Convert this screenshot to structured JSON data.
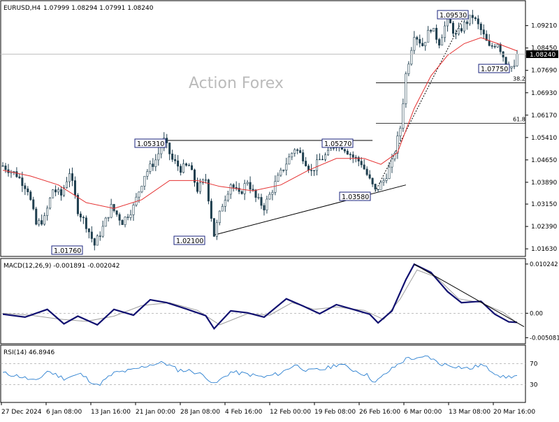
{
  "chart_data": {
    "type": "candlestick",
    "symbol_label": "EURUSD,H4",
    "ohlc_header": "1.07999 1.08294 1.07991 1.08240",
    "last_price_label": "1.08240",
    "watermark": "Action Forex",
    "price_axis": {
      "ylim": [
        1.0142,
        1.0989
      ],
      "ticks": [
        "1.09210",
        "1.08450",
        "1.07690",
        "1.06930",
        "1.06170",
        "1.05410",
        "1.04650",
        "1.03890",
        "1.03150",
        "1.02390",
        "1.01630"
      ]
    },
    "time_labels": [
      "27 Dec 2024",
      "6 Jan 08:00",
      "13 Jan 16:00",
      "21 Jan 00:00",
      "28 Jan 08:00",
      "4 Feb 16:00",
      "12 Feb 00:00",
      "19 Feb 08:00",
      "26 Feb 16:00",
      "6 Mar 00:00",
      "13 Mar 08:00",
      "20 Mar 16:00"
    ],
    "price_path": [
      [
        0,
        1.0445
      ],
      [
        5,
        1.0415
      ],
      [
        9,
        1.0365
      ],
      [
        12,
        1.0245
      ],
      [
        15,
        1.0265
      ],
      [
        18,
        1.0365
      ],
      [
        21,
        1.0345
      ],
      [
        24,
        1.0425
      ],
      [
        27,
        1.0295
      ],
      [
        30,
        1.0245
      ],
      [
        33,
        1.0176
      ],
      [
        36,
        1.0235
      ],
      [
        39,
        1.0305
      ],
      [
        43,
        1.0255
      ],
      [
        47,
        1.0305
      ],
      [
        51,
        1.0415
      ],
      [
        55,
        1.0465
      ],
      [
        58,
        1.0531
      ],
      [
        61,
        1.0465
      ],
      [
        64,
        1.0435
      ],
      [
        67,
        1.0445
      ],
      [
        70,
        1.0365
      ],
      [
        73,
        1.04
      ],
      [
        76,
        1.021
      ],
      [
        79,
        1.0315
      ],
      [
        82,
        1.0385
      ],
      [
        85,
        1.0345
      ],
      [
        88,
        1.0395
      ],
      [
        91,
        1.0335
      ],
      [
        94,
        1.0305
      ],
      [
        98,
        1.0385
      ],
      [
        102,
        1.0455
      ],
      [
        105,
        1.0505
      ],
      [
        108,
        1.0475
      ],
      [
        111,
        1.0425
      ],
      [
        114,
        1.0465
      ],
      [
        117,
        1.0485
      ],
      [
        120,
        1.0527
      ],
      [
        123,
        1.0505
      ],
      [
        126,
        1.0475
      ],
      [
        129,
        1.0455
      ],
      [
        132,
        1.0395
      ],
      [
        134,
        1.0358
      ],
      [
        137,
        1.0395
      ],
      [
        140,
        1.0455
      ],
      [
        143,
        1.0575
      ],
      [
        145,
        1.0755
      ],
      [
        148,
        1.0895
      ],
      [
        151,
        1.0855
      ],
      [
        154,
        1.0915
      ],
      [
        157,
        1.0865
      ],
      [
        160,
        1.0945
      ],
      [
        163,
        1.0885
      ],
      [
        166,
        1.0925
      ],
      [
        169,
        1.0953
      ],
      [
        172,
        1.0905
      ],
      [
        175,
        1.0845
      ],
      [
        178,
        1.0865
      ],
      [
        181,
        1.0795
      ],
      [
        184,
        1.0775
      ],
      [
        185,
        1.0824
      ]
    ],
    "ma_path": [
      [
        0,
        1.043
      ],
      [
        10,
        1.041
      ],
      [
        20,
        1.038
      ],
      [
        30,
        1.032
      ],
      [
        40,
        1.03
      ],
      [
        50,
        1.033
      ],
      [
        60,
        1.0395
      ],
      [
        70,
        1.0395
      ],
      [
        78,
        1.0375
      ],
      [
        90,
        1.036
      ],
      [
        100,
        1.038
      ],
      [
        110,
        1.043
      ],
      [
        120,
        1.047
      ],
      [
        130,
        1.047
      ],
      [
        136,
        1.045
      ],
      [
        142,
        1.049
      ],
      [
        148,
        1.064
      ],
      [
        154,
        1.075
      ],
      [
        160,
        1.082
      ],
      [
        166,
        1.086
      ],
      [
        172,
        1.088
      ],
      [
        178,
        1.086
      ],
      [
        185,
        1.0835
      ]
    ],
    "levels": [
      {
        "label": "1.09530",
        "price": 1.0953,
        "type": "swing-high"
      },
      {
        "label": "1.05310",
        "price": 1.0531,
        "type": "swing-high"
      },
      {
        "label": "1.05270",
        "price": 1.0527,
        "type": "swing-high"
      },
      {
        "label": "1.07750",
        "price": 1.0775,
        "type": "swing-low"
      },
      {
        "label": "1.03580",
        "price": 1.0358,
        "type": "swing-low"
      },
      {
        "label": "1.02100",
        "price": 1.021,
        "type": "swing-low"
      },
      {
        "label": "1.01760",
        "price": 1.0176,
        "type": "swing-low"
      }
    ],
    "fib_levels": [
      {
        "label": "38.2",
        "price": 1.0727
      },
      {
        "label": "61.8",
        "price": 1.0589
      }
    ],
    "macd": {
      "label": "MACD(12,26,9) -0.001891 -0.002042",
      "ticks": [
        "0.010242",
        "0.00",
        "-0.005081"
      ],
      "ylim": [
        -0.0062,
        0.0111
      ],
      "macd_path": [
        [
          0,
          -0.0002
        ],
        [
          8,
          -0.0008
        ],
        [
          16,
          0.0008
        ],
        [
          22,
          -0.0022
        ],
        [
          27,
          -0.0006
        ],
        [
          34,
          -0.0024
        ],
        [
          40,
          0.0008
        ],
        [
          47,
          -0.0004
        ],
        [
          53,
          0.0028
        ],
        [
          59,
          0.0022
        ],
        [
          66,
          0.0009
        ],
        [
          73,
          -0.0005
        ],
        [
          76,
          -0.0032
        ],
        [
          82,
          0.0005
        ],
        [
          88,
          0.0001
        ],
        [
          94,
          -0.0008
        ],
        [
          102,
          0.003
        ],
        [
          108,
          0.0015
        ],
        [
          114,
          -0.0001
        ],
        [
          120,
          0.0018
        ],
        [
          126,
          0.0008
        ],
        [
          132,
          -0.0002
        ],
        [
          135,
          -0.002
        ],
        [
          140,
          0.0005
        ],
        [
          145,
          0.007
        ],
        [
          148,
          0.0102
        ],
        [
          154,
          0.0085
        ],
        [
          160,
          0.0045
        ],
        [
          165,
          0.0022
        ],
        [
          172,
          0.0025
        ],
        [
          177,
          -0.0002
        ],
        [
          182,
          -0.0018
        ],
        [
          185,
          -0.0019
        ]
      ],
      "signal_path": [
        [
          0,
          0.0
        ],
        [
          10,
          -0.0004
        ],
        [
          20,
          -0.0012
        ],
        [
          30,
          -0.0017
        ],
        [
          40,
          -0.0006
        ],
        [
          50,
          0.0016
        ],
        [
          60,
          0.0022
        ],
        [
          70,
          0.0006
        ],
        [
          78,
          -0.0024
        ],
        [
          88,
          -0.0001
        ],
        [
          96,
          -0.0004
        ],
        [
          104,
          0.0022
        ],
        [
          112,
          0.0008
        ],
        [
          120,
          0.0013
        ],
        [
          130,
          0.0006
        ],
        [
          137,
          -0.0013
        ],
        [
          143,
          0.003
        ],
        [
          149,
          0.009
        ],
        [
          156,
          0.0075
        ],
        [
          164,
          0.003
        ],
        [
          172,
          0.0022
        ],
        [
          180,
          0.0002
        ],
        [
          185,
          -0.002
        ]
      ]
    },
    "rsi": {
      "label": "RSI(14) 46.8946",
      "ticks": [
        "70",
        "30"
      ],
      "ylim": [
        0,
        100
      ],
      "path": [
        [
          0,
          52
        ],
        [
          6,
          46
        ],
        [
          12,
          36
        ],
        [
          16,
          56
        ],
        [
          22,
          42
        ],
        [
          28,
          50
        ],
        [
          34,
          28
        ],
        [
          40,
          52
        ],
        [
          47,
          58
        ],
        [
          53,
          68
        ],
        [
          58,
          72
        ],
        [
          63,
          58
        ],
        [
          68,
          56
        ],
        [
          73,
          46
        ],
        [
          76,
          30
        ],
        [
          82,
          54
        ],
        [
          88,
          50
        ],
        [
          94,
          44
        ],
        [
          100,
          52
        ],
        [
          105,
          68
        ],
        [
          110,
          56
        ],
        [
          116,
          60
        ],
        [
          121,
          70
        ],
        [
          126,
          58
        ],
        [
          131,
          48
        ],
        [
          134,
          34
        ],
        [
          138,
          52
        ],
        [
          142,
          68
        ],
        [
          146,
          82
        ],
        [
          149,
          78
        ],
        [
          153,
          84
        ],
        [
          157,
          70
        ],
        [
          162,
          66
        ],
        [
          168,
          60
        ],
        [
          172,
          68
        ],
        [
          176,
          56
        ],
        [
          180,
          44
        ],
        [
          184,
          46
        ],
        [
          185,
          47
        ]
      ]
    },
    "grid": false,
    "legend": "none"
  }
}
